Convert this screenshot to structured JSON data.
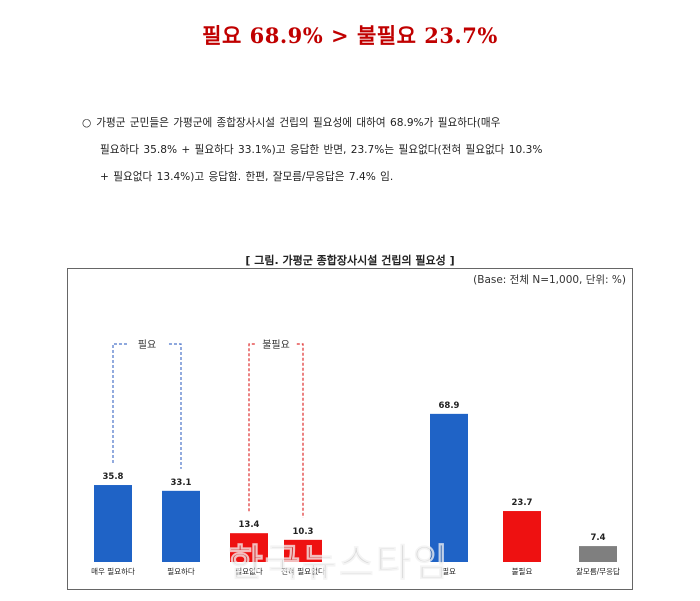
{
  "headline": "필요 68.9% > 불필요 23.7%",
  "summary": {
    "bullet": "○",
    "line1": "가평군 군민들은 가평군에 종합장사시설 건립의 필요성에 대하여 68.9%가 필요하다(매우",
    "line2": "필요하다 35.8% + 필요하다 33.1%)고 응답한 반면, 23.7%는 필요없다(전혀 필요없다 10.3%",
    "line3": "+ 필요없다 13.4%)고 응답함. 한편, 잘모름/무응답은 7.4% 임."
  },
  "figure_title": "[ 그림. 가평군 종합장사시설 건립의 필요성 ]",
  "base_note": "(Base: 전체 N=1,000, 단위: %)",
  "colors": {
    "blue": "#1f63c6",
    "red": "#ee1111",
    "gray": "#7f7f7f",
    "need_bracket": "#4a73c9",
    "noneed_bracket": "#e03030"
  },
  "chart_data": {
    "type": "bar",
    "title": "[ 그림. 가평군 종합장사시설 건립의 필요성 ]",
    "unit": "%",
    "categories": [
      "매우 필요하다",
      "필요하다",
      "필요없다",
      "전혀 필요없다",
      "필요",
      "불필요",
      "잘모름/무응답"
    ],
    "values": [
      35.8,
      33.1,
      13.4,
      10.3,
      68.9,
      23.7,
      7.4
    ],
    "value_labels": [
      "35.8",
      "33.1",
      "13.4",
      "10.3",
      "68.9",
      "23.7",
      "7.4"
    ],
    "bar_colors": [
      "blue",
      "blue",
      "red",
      "red",
      "blue",
      "red",
      "gray"
    ],
    "groups": [
      {
        "label": "필요",
        "members": [
          0,
          1
        ],
        "color": "need_bracket"
      },
      {
        "label": "불필요",
        "members": [
          2,
          3
        ],
        "color": "noneed_bracket"
      }
    ],
    "ylim": [
      0,
      100
    ],
    "grid": false,
    "legend": "none"
  },
  "watermark": "한국뉴스타임"
}
